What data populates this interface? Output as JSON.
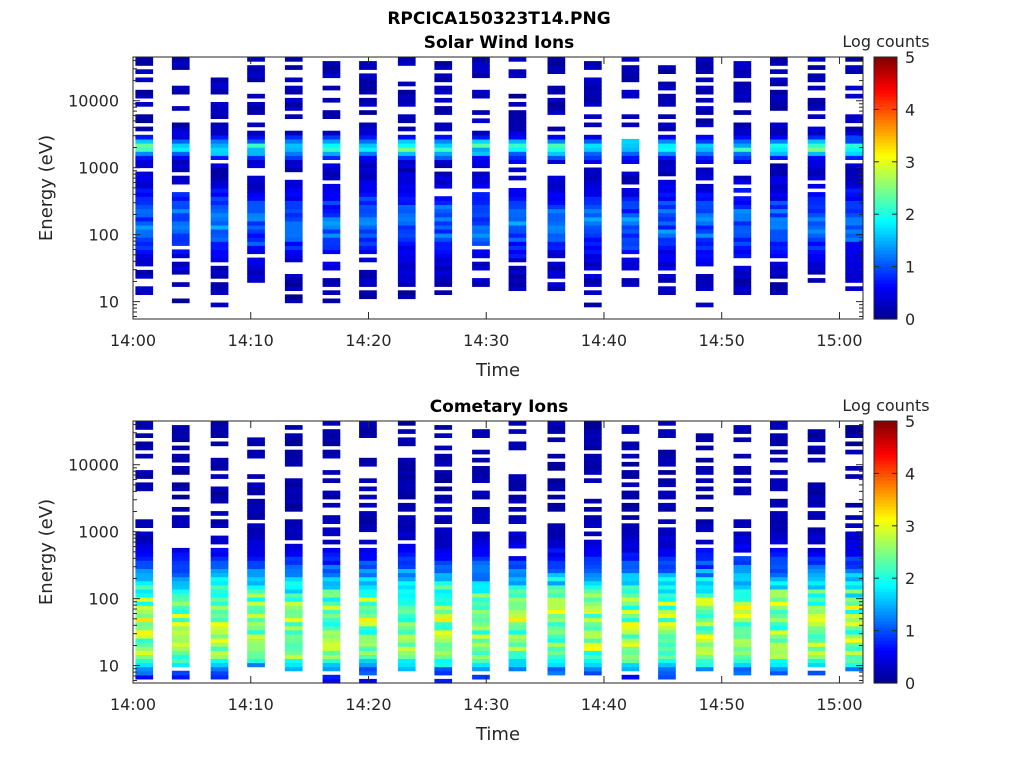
{
  "figure_title": "RPCICA150323T14.PNG",
  "colormap": [
    "#00008f",
    "#0000ff",
    "#0080ff",
    "#00ffff",
    "#80ff80",
    "#ffff00",
    "#ff8000",
    "#ff0000",
    "#800000"
  ],
  "chart_data": [
    {
      "type": "heatmap",
      "title": "Solar Wind Ions",
      "xlabel": "Time",
      "ylabel": "Energy (eV)",
      "colorbar_label": "Log counts",
      "x_ticks": [
        "14:00",
        "14:10",
        "14:20",
        "14:30",
        "14:40",
        "14:50",
        "15:00"
      ],
      "y_ticks": [
        "10",
        "100",
        "1000",
        "10000"
      ],
      "y_scale": "log",
      "y_range_eV": [
        5.5,
        45000
      ],
      "x_range_min": [
        0,
        62
      ],
      "colorbar_ticks": [
        "0",
        "1",
        "2",
        "3",
        "4",
        "5"
      ],
      "clim": [
        0,
        5
      ],
      "time_min": [
        0.2,
        3.3,
        6.6,
        9.7,
        12.9,
        16.1,
        19.2,
        22.5,
        25.6,
        28.8,
        31.9,
        35.2,
        38.3,
        41.5,
        44.6,
        47.8,
        51.0,
        54.1,
        57.3,
        60.5
      ],
      "sweep_width_min": 1.5,
      "gap_sweeps": [],
      "profile": {
        "peaks": [
          {
            "energy_eV": 2000,
            "log_counts": 1.9,
            "width_dec": 0.1
          },
          {
            "energy_eV": 150,
            "log_counts": 1.0,
            "width_dec": 0.35
          }
        ],
        "low_energy_cutoff_eV": 12,
        "high_background": 0.35
      }
    },
    {
      "type": "heatmap",
      "title": "Cometary Ions",
      "xlabel": "Time",
      "ylabel": "Energy (eV)",
      "colorbar_label": "Log counts",
      "x_ticks": [
        "14:00",
        "14:10",
        "14:20",
        "14:30",
        "14:40",
        "14:50",
        "15:00"
      ],
      "y_ticks": [
        "10",
        "100",
        "1000",
        "10000"
      ],
      "y_scale": "log",
      "y_range_eV": [
        5.5,
        45000
      ],
      "x_range_min": [
        0,
        62
      ],
      "colorbar_ticks": [
        "0",
        "1",
        "2",
        "3",
        "4",
        "5"
      ],
      "clim": [
        0,
        5
      ],
      "time_min": [
        0.2,
        3.3,
        6.6,
        9.7,
        12.9,
        16.1,
        19.2,
        22.5,
        25.6,
        28.8,
        31.9,
        35.2,
        38.3,
        41.5,
        44.6,
        47.8,
        51.0,
        54.1,
        57.3,
        60.5
      ],
      "sweep_width_min": 1.5,
      "gap_sweeps": [],
      "profile": {
        "peaks": [
          {
            "energy_eV": 60,
            "log_counts": 2.6,
            "width_dec": 0.5
          },
          {
            "energy_eV": 15,
            "log_counts": 1.2,
            "width_dec": 0.2
          }
        ],
        "low_energy_cutoff_eV": 8,
        "high_background": 0.25
      }
    }
  ]
}
